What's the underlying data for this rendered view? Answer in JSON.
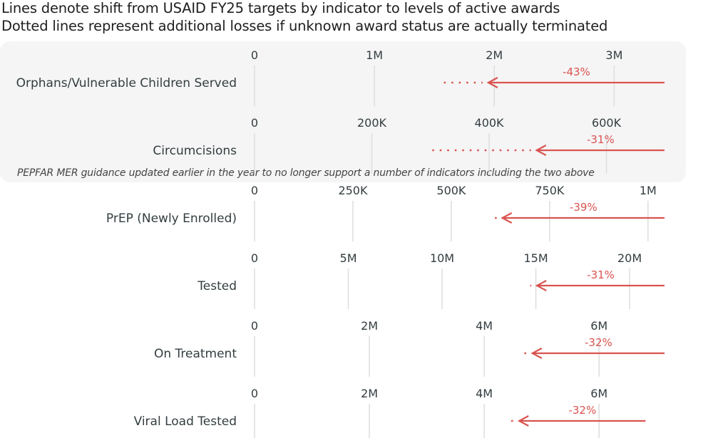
{
  "title_line1": "Lines denote shift from USAID FY25 targets by indicator to levels of active awards",
  "title_line2": "Dotted lines represent additional losses if unknown award status are actually terminated",
  "panel_note": "PEPFAR MER guidance updated earlier in the year to no longer support a number of indicators including the two above",
  "colors": {
    "arrow": "#d9534f",
    "tick_text": "#333d40",
    "grid": "#dddddd",
    "panel": "#f5f5f5"
  },
  "chart_data": [
    {
      "type": "arrow-range",
      "label": "Orphans/Vulnerable Children Served",
      "xlim": [
        0,
        3420000
      ],
      "ticks": [
        0,
        1000000,
        2000000,
        3000000
      ],
      "tick_labels": [
        "0",
        "1M",
        "2M",
        "3M"
      ],
      "target": 3420000,
      "active": 1950000,
      "if_unknown_terminated": 1580000,
      "change_label": "-43%"
    },
    {
      "type": "arrow-range",
      "label": "Circumcisions",
      "xlim": [
        0,
        699000
      ],
      "ticks": [
        0,
        200000,
        400000,
        600000
      ],
      "tick_labels": [
        "0",
        "200K",
        "400K",
        "600K"
      ],
      "target": 699000,
      "active": 481000,
      "if_unknown_terminated": 303000,
      "change_label": "-31%"
    },
    {
      "type": "arrow-range",
      "label": "PrEP (Newly Enrolled)",
      "xlim": [
        0,
        1042000
      ],
      "ticks": [
        0,
        250000,
        500000,
        750000,
        1000000
      ],
      "tick_labels": [
        "0",
        "250K",
        "500K",
        "750K",
        "1M"
      ],
      "target": 1042000,
      "active": 630000,
      "if_unknown_terminated": 611000,
      "change_label": "-39%"
    },
    {
      "type": "arrow-range",
      "label": "Tested",
      "xlim": [
        0,
        21860000
      ],
      "ticks": [
        0,
        5000000,
        10000000,
        15000000,
        20000000
      ],
      "tick_labels": [
        "0",
        "5M",
        "10M",
        "15M",
        "20M"
      ],
      "target": 21860000,
      "active": 15060000,
      "if_unknown_terminated": 14700000,
      "change_label": "-31%"
    },
    {
      "type": "arrow-range",
      "label": "On Treatment",
      "xlim": [
        0,
        7140000
      ],
      "ticks": [
        0,
        2000000,
        4000000,
        6000000
      ],
      "tick_labels": [
        "0",
        "2M",
        "4M",
        "6M"
      ],
      "target": 7140000,
      "active": 4840000,
      "if_unknown_terminated": 4700000,
      "change_label": "-32%"
    },
    {
      "type": "arrow-range",
      "label": "Viral Load Tested",
      "xlim": [
        0,
        7140000
      ],
      "ticks": [
        0,
        2000000,
        4000000,
        6000000
      ],
      "tick_labels": [
        "0",
        "2M",
        "4M",
        "6M"
      ],
      "target": 6810000,
      "active": 4610000,
      "if_unknown_terminated": 4470000,
      "change_label": "-32%"
    }
  ]
}
